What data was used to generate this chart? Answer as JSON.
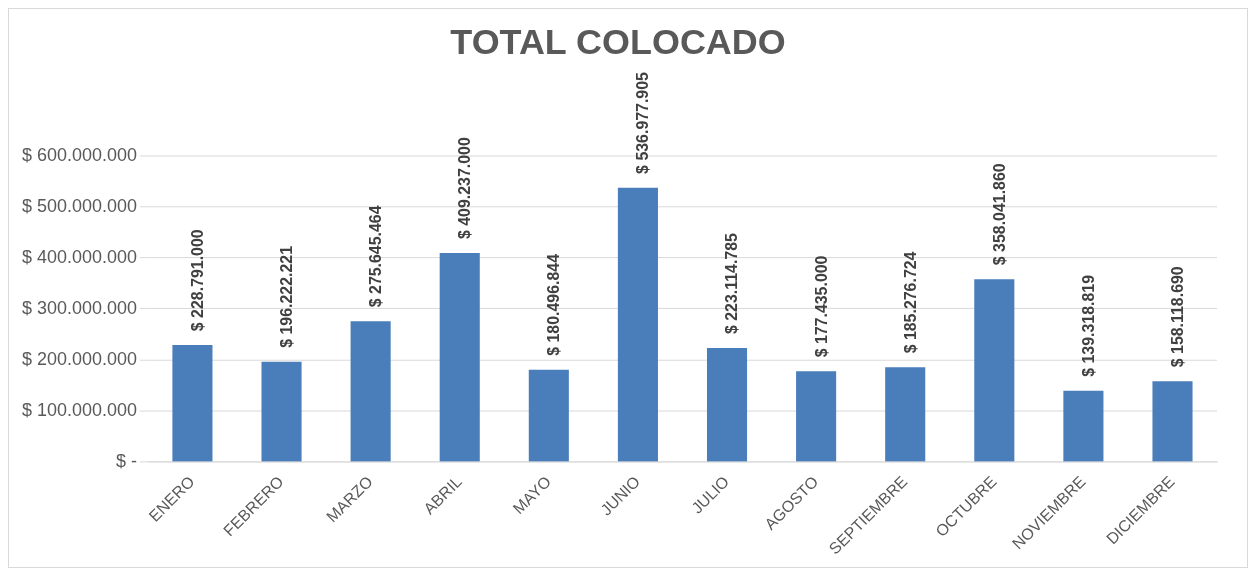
{
  "chart_data": {
    "type": "bar",
    "title": "TOTAL COLOCADO",
    "categories": [
      "ENERO",
      "FEBRERO",
      "MARZO",
      "ABRIL",
      "MAYO",
      "JUNIO",
      "JULIO",
      "AGOSTO",
      "SEPTIEMBRE",
      "OCTUBRE",
      "NOVIEMBRE",
      "DICIEMBRE"
    ],
    "values": [
      228791000,
      196222221,
      275645464,
      409237000,
      180496844,
      536977905,
      223114785,
      177435000,
      185276724,
      358041860,
      139318819,
      158118690
    ],
    "value_labels": [
      "$ 228.791.000",
      "$ 196.222.221",
      "$ 275.645.464",
      "$ 409.237.000",
      "$ 180.496.844",
      "$ 536.977.905",
      "$ 223.114.785",
      "$ 177.435.000",
      "$ 185.276.724",
      "$ 358.041.860",
      "$ 139.318.819",
      "$ 158.118.690"
    ],
    "color": "#4a7ebb",
    "ylim": [
      0,
      600000000
    ],
    "yticks": [
      {
        "value": 0,
        "label": "$ -"
      },
      {
        "value": 100000000,
        "label": "$ 100.000.000"
      },
      {
        "value": 200000000,
        "label": "$ 200.000.000"
      },
      {
        "value": 300000000,
        "label": "$ 300.000.000"
      },
      {
        "value": 400000000,
        "label": "$ 400.000.000"
      },
      {
        "value": 500000000,
        "label": "$ 500.000.000"
      },
      {
        "value": 600000000,
        "label": "$ 600.000.000"
      }
    ],
    "grid": "y",
    "legend": false
  }
}
